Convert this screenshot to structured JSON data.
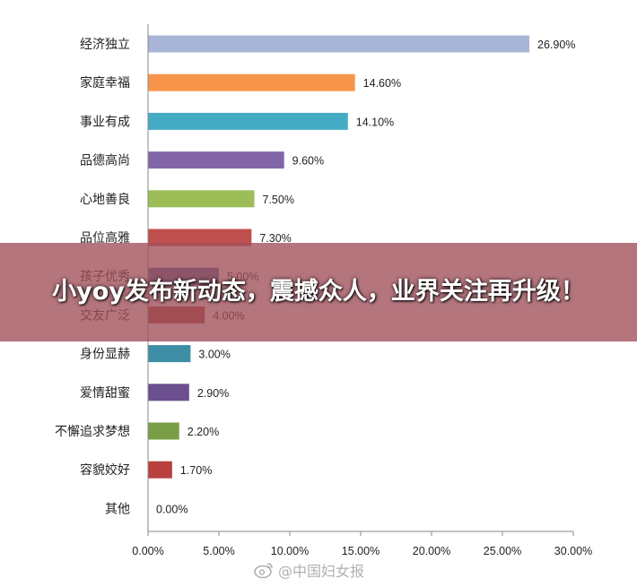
{
  "banner": {
    "headline": "小yoy发布新动态，震撼众人，业界关注再升级！"
  },
  "watermark": {
    "text": "@中国妇女报",
    "icon": "weibo-icon"
  },
  "chart_data": {
    "type": "bar",
    "orientation": "horizontal",
    "categories": [
      "经济独立",
      "家庭幸福",
      "事业有成",
      "品德高尚",
      "心地善良",
      "品位高雅",
      "孩子优秀",
      "交友广泛",
      "身份显赫",
      "爱情甜蜜",
      "不懈追求梦想",
      "容貌姣好",
      "其他"
    ],
    "values": [
      26.9,
      14.6,
      14.1,
      9.6,
      7.5,
      7.3,
      5.0,
      4.0,
      3.0,
      2.9,
      2.2,
      1.7,
      0.0
    ],
    "value_labels": [
      "26.90%",
      "14.60%",
      "14.10%",
      "9.60%",
      "7.50%",
      "7.30%",
      "5.00%",
      "4.00%",
      "3.00%",
      "2.90%",
      "2.20%",
      "1.70%",
      "0.00%"
    ],
    "colors": [
      "#a9b5d6",
      "#f6954a",
      "#44abc4",
      "#8266a7",
      "#9cbd58",
      "#c0504d",
      "#4a6fa5",
      "#a94a3f",
      "#3e8ea5",
      "#6b4f8e",
      "#7a9e48",
      "#b8403f",
      "#888888"
    ],
    "x_ticks": [
      "0.00%",
      "5.00%",
      "10.00%",
      "15.00%",
      "20.00%",
      "25.00%",
      "30.00%"
    ],
    "xlim": [
      0,
      30
    ],
    "title": "",
    "xlabel": "",
    "ylabel": "",
    "grid": false
  }
}
